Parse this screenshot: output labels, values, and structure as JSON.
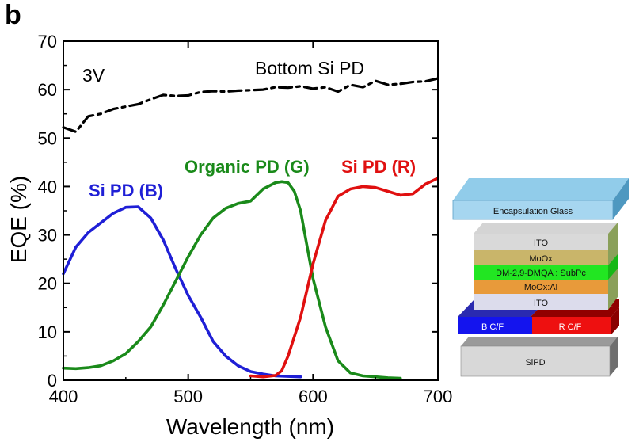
{
  "panel_letter": "b",
  "chart_data": {
    "type": "line",
    "xlabel": "Wavelength (nm)",
    "ylabel": "EQE (%)",
    "xlim": [
      400,
      700
    ],
    "ylim": [
      0,
      70
    ],
    "xticks": [
      400,
      500,
      600,
      700
    ],
    "yticks": [
      0,
      10,
      20,
      30,
      40,
      50,
      60,
      70
    ],
    "grid": false,
    "annotation": "3V",
    "series": [
      {
        "name": "Bottom Si PD",
        "color": "#000000",
        "style": "dash-dot",
        "x": [
          400,
          410,
          420,
          430,
          440,
          450,
          460,
          470,
          480,
          490,
          500,
          510,
          520,
          530,
          540,
          550,
          560,
          570,
          580,
          590,
          600,
          610,
          620,
          630,
          640,
          650,
          660,
          670,
          680,
          690,
          700
        ],
        "y": [
          52.2,
          51.3,
          54.5,
          55.0,
          56.0,
          56.5,
          57.0,
          58.0,
          58.9,
          58.7,
          58.8,
          59.5,
          59.7,
          59.6,
          59.8,
          59.9,
          60.0,
          60.5,
          60.4,
          60.7,
          60.2,
          60.5,
          59.6,
          61.0,
          60.5,
          61.8,
          61.0,
          61.2,
          61.6,
          61.7,
          62.3
        ]
      },
      {
        "name": "Si PD (B)",
        "color": "#1f1fd6",
        "style": "solid",
        "x": [
          400,
          410,
          420,
          430,
          440,
          450,
          460,
          470,
          480,
          490,
          500,
          510,
          520,
          530,
          540,
          550,
          560,
          570,
          580,
          590
        ],
        "y": [
          22.0,
          27.5,
          30.5,
          32.5,
          34.5,
          35.7,
          35.8,
          33.5,
          29.0,
          23.0,
          17.5,
          13.0,
          8.0,
          5.0,
          3.0,
          1.8,
          1.3,
          0.9,
          0.8,
          0.7
        ]
      },
      {
        "name": "Organic PD (G)",
        "color": "#1a8a1a",
        "style": "solid",
        "x": [
          400,
          410,
          420,
          430,
          440,
          450,
          460,
          470,
          480,
          490,
          500,
          510,
          520,
          530,
          540,
          550,
          560,
          570,
          575,
          580,
          585,
          590,
          595,
          600,
          610,
          620,
          630,
          640,
          650,
          660,
          670
        ],
        "y": [
          2.5,
          2.4,
          2.6,
          3.0,
          4.0,
          5.5,
          8.0,
          11.0,
          15.5,
          20.5,
          25.5,
          30.0,
          33.5,
          35.5,
          36.5,
          37.0,
          39.5,
          40.8,
          41.0,
          40.8,
          39.0,
          35.0,
          28.0,
          21.0,
          11.0,
          4.0,
          1.5,
          0.9,
          0.7,
          0.5,
          0.4
        ]
      },
      {
        "name": "Si PD (R)",
        "color": "#e01010",
        "style": "solid",
        "x": [
          550,
          560,
          570,
          575,
          580,
          590,
          600,
          610,
          620,
          630,
          640,
          650,
          660,
          670,
          680,
          690,
          700
        ],
        "y": [
          0.9,
          0.7,
          1.0,
          2.0,
          5.0,
          13.0,
          24.0,
          33.0,
          38.0,
          39.5,
          40.0,
          39.8,
          39.0,
          38.2,
          38.5,
          40.5,
          41.7
        ]
      }
    ]
  },
  "stack": {
    "layers": [
      "Encapsulation Glass",
      "ITO",
      "MoOx",
      "DM-2,9-DMQA : SubPc",
      "MoOx:Al",
      "ITO",
      "B C/F",
      "R C/F",
      "SiPD"
    ]
  }
}
